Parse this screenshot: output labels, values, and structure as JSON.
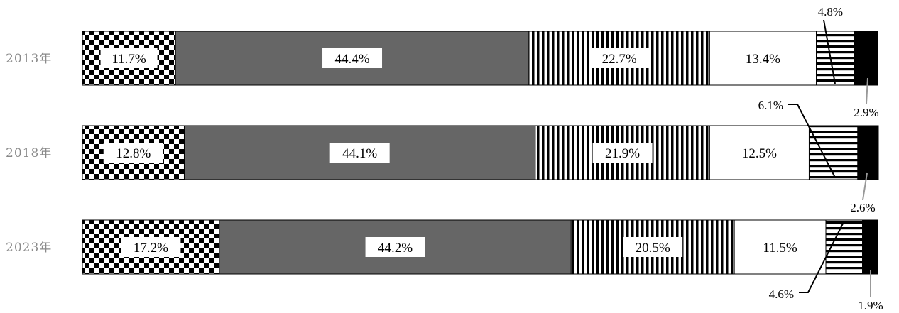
{
  "chart_data": {
    "type": "bar",
    "orientation": "horizontal",
    "stacked": true,
    "percent": true,
    "categories": [
      "2013年",
      "2018年",
      "2023年"
    ],
    "series": [
      {
        "values": [
          11.7,
          12.8,
          17.2
        ],
        "pattern": "checker"
      },
      {
        "values": [
          44.4,
          44.1,
          44.2
        ],
        "pattern": "solid",
        "color": "#666666"
      },
      {
        "values": [
          22.7,
          21.9,
          20.5
        ],
        "pattern": "vertical-stripes"
      },
      {
        "values": [
          13.4,
          12.5,
          11.5
        ],
        "pattern": "white"
      },
      {
        "values": [
          4.8,
          6.1,
          4.6
        ],
        "pattern": "horizontal-stripes"
      },
      {
        "values": [
          2.9,
          2.6,
          1.9
        ],
        "pattern": "solid",
        "color": "#000000"
      }
    ],
    "labels": [
      [
        "11.7%",
        "44.4%",
        "22.7%",
        "13.4%",
        "4.8%",
        "2.9%"
      ],
      [
        "12.8%",
        "44.1%",
        "21.9%",
        "12.5%",
        "6.1%",
        "2.6%"
      ],
      [
        "17.2%",
        "44.2%",
        "20.5%",
        "11.5%",
        "4.6%",
        "1.9%"
      ]
    ],
    "xlim": [
      0,
      100
    ],
    "grid": false,
    "legend": "none"
  }
}
